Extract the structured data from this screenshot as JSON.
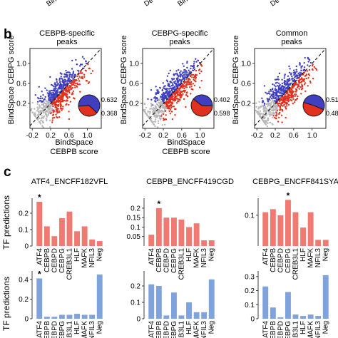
{
  "colors": {
    "red": "#e0301e",
    "blue": "#3f3fc0",
    "grey": "#b8b8b8",
    "bar_red": "#f07a72",
    "bar_blue": "#7fa3dd",
    "axis": "#111111"
  },
  "top_fragments": [
    "Bin",
    "De",
    "Bin",
    "De"
  ],
  "panel_b": {
    "label": "b",
    "ylabel": [
      "BindSpace CEBPG score"
    ],
    "xlabel": [
      "BindSpace",
      "CEBPB score"
    ],
    "plots": [
      {
        "title": [
          "CEBPB-specific",
          "peaks"
        ],
        "pie": {
          "top": "0.632",
          "bottom": "0.368",
          "blue": 0.632,
          "red": 0.368
        }
      },
      {
        "title": [
          "CEBPG-specific",
          "peaks"
        ],
        "pie": {
          "top": "0.402",
          "bottom": "0.598",
          "blue": 0.402,
          "red": 0.598
        }
      },
      {
        "title": [
          "Common",
          "peaks"
        ],
        "pie": {
          "top": "0.516",
          "bottom": "0.484",
          "blue": 0.516,
          "red": 0.484
        }
      }
    ],
    "x_ticks": [
      "-0.2",
      "0.2",
      "0.6",
      "1.0"
    ],
    "y_ticks": [
      "0.2",
      "0.6",
      "1.0"
    ]
  },
  "panel_c": {
    "label": "c",
    "ylabel": "TF predictions",
    "categories": [
      "ATF4",
      "CEBPB",
      "CEBPD",
      "CEBPG",
      "CREB3L1",
      "HLF",
      "MAFK",
      "NFIL3",
      "Neg"
    ],
    "star": "*"
  },
  "chart_data": [
    {
      "type": "scatter",
      "title": "CEBPB-specific peaks",
      "xlabel": "BindSpace CEBPB score",
      "ylabel": "BindSpace CEBPG score",
      "xlim": [
        -0.25,
        1.3
      ],
      "ylim": [
        -0.3,
        1.3
      ],
      "pie_fractions": {
        "blue": 0.632,
        "red": 0.368
      }
    },
    {
      "type": "scatter",
      "title": "CEBPG-specific peaks",
      "xlabel": "BindSpace CEBPB score",
      "ylabel": "BindSpace CEBPG score",
      "xlim": [
        -0.25,
        1.3
      ],
      "ylim": [
        -0.3,
        1.3
      ],
      "pie_fractions": {
        "blue": 0.402,
        "red": 0.598
      }
    },
    {
      "type": "scatter",
      "title": "Common peaks",
      "xlabel": "BindSpace CEBPB score",
      "ylabel": "BindSpace CEBPG score",
      "xlim": [
        -0.25,
        1.3
      ],
      "ylim": [
        -0.3,
        1.3
      ],
      "pie_fractions": {
        "blue": 0.516,
        "red": 0.484
      }
    },
    {
      "type": "bar",
      "title": "ATF4_ENCFF182VFL",
      "color": "red",
      "categories": [
        "ATF4",
        "CEBPB",
        "CEBPD",
        "CEBPG",
        "CREB3L1",
        "HLF",
        "MAFK",
        "NFIL3",
        "Neg"
      ],
      "values": [
        0.27,
        0.12,
        0.06,
        0.17,
        0.21,
        0.09,
        0.12,
        0.04,
        0.03
      ],
      "ylim": [
        0,
        0.3
      ],
      "yticks": [
        "0",
        "0.1",
        "0.2"
      ],
      "star_index": 0
    },
    {
      "type": "bar",
      "title": "CEBPB_ENCFF419CGD",
      "color": "red",
      "categories": [
        "ATF4",
        "CEBPB",
        "CEBPD",
        "CEBPG",
        "CREB3L1",
        "HLF",
        "MAFK",
        "NFIL3",
        "Neg"
      ],
      "values": [
        0.06,
        0.2,
        0.15,
        0.15,
        0.14,
        0.1,
        0.12,
        0.03,
        0.03
      ],
      "ylim": [
        0,
        0.26
      ],
      "yticks": [
        "0.05",
        "0.1",
        "0.15",
        "0.2"
      ],
      "star_index": 1
    },
    {
      "type": "bar",
      "title": "CEBPG_ENCFF841SYA",
      "color": "red",
      "categories": [
        "ATF4",
        "CEBPB",
        "CEBPD",
        "CEBPG",
        "CREB3L1",
        "HLF",
        "MAFK",
        "NFIL3",
        "Neg"
      ],
      "values": [
        0.11,
        0.12,
        0.1,
        0.15,
        0.11,
        0.06,
        0.11,
        0.02,
        0.02
      ],
      "ylim": [
        0,
        0.16
      ],
      "yticks": [
        "0.1"
      ],
      "star_index": 3
    },
    {
      "type": "bar",
      "color": "blue",
      "categories": [
        "ATF4",
        "CEBPB",
        "CEBPD",
        "CEBPG",
        "CREB3L1",
        "HLF",
        "MAFK",
        "NFIL3",
        "Neg"
      ],
      "values": [
        0.41,
        0.02,
        0.02,
        0.04,
        0.04,
        0.05,
        0.04,
        0.04,
        0.45
      ],
      "ylim": [
        0,
        0.5
      ],
      "yticks": [
        "0",
        "0.2",
        "0.4"
      ],
      "star_index": 0
    },
    {
      "type": "bar",
      "color": "blue",
      "categories": [
        "ATF4",
        "CEBPB",
        "CEBPD",
        "CEBPG",
        "CREB3L1",
        "HLF",
        "MAFK",
        "NFIL3",
        "Neg"
      ],
      "values": [
        0.21,
        0.2,
        0.02,
        0.16,
        0.02,
        0.1,
        0.04,
        0.04,
        0.24
      ],
      "ylim": [
        0,
        0.3
      ],
      "yticks": [
        "0",
        "0.1",
        "0.2"
      ],
      "star_index": null
    },
    {
      "type": "bar",
      "color": "blue",
      "categories": [
        "ATF4",
        "CEBPB",
        "CEBPD",
        "CEBPG",
        "CREB3L1",
        "HLF",
        "MAFK",
        "NFIL3",
        "Neg"
      ],
      "values": [
        0.23,
        0.08,
        0.01,
        0.19,
        0.03,
        0.02,
        0.03,
        0.02,
        0.31
      ],
      "ylim": [
        0,
        0.35
      ],
      "yticks": [
        "0",
        "0.1",
        "0.2",
        "0.3"
      ],
      "star_index": null
    }
  ]
}
